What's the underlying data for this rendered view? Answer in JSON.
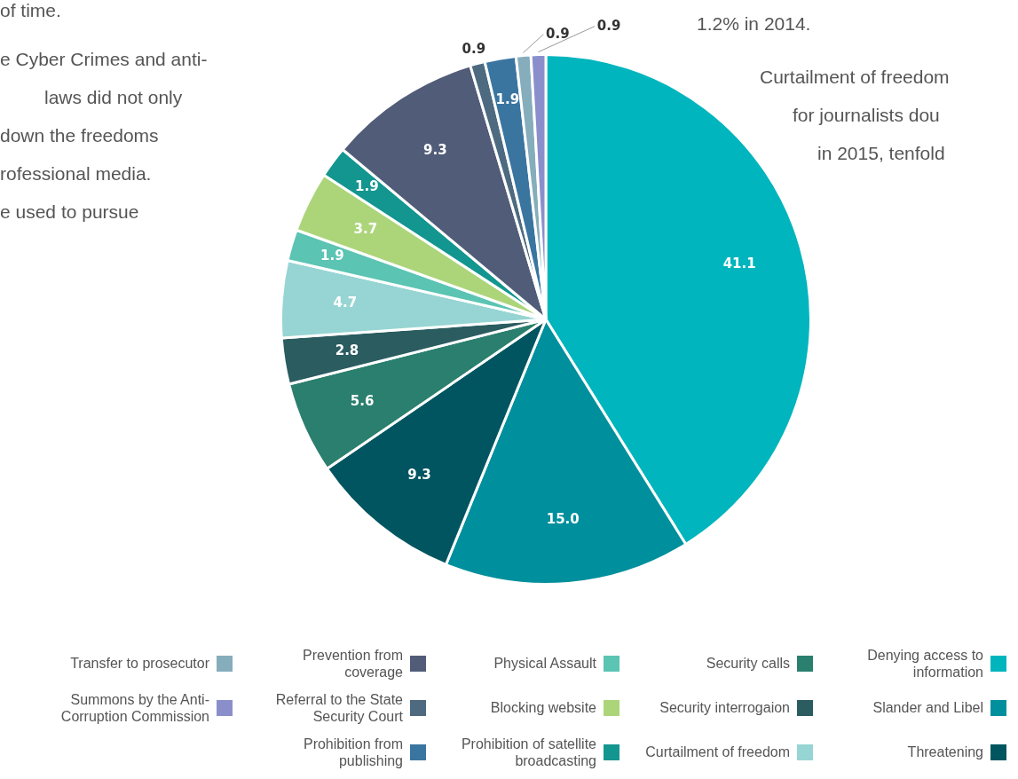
{
  "chart_data": {
    "type": "pie",
    "categories": [
      "Denying access to information",
      "Slander and Libel",
      "Threatening",
      "Security calls",
      "Security interrogaion",
      "Curtailment of freedom",
      "Physical Assault",
      "Blocking website",
      "Prohibition of  satellite broadcasting",
      "Prevention from coverage",
      "Referral to the State Security Court",
      "Prohibition from publishing",
      "Transfer to prosecutor",
      "Summons by the Anti-Corruption Commission"
    ],
    "values": [
      41.1,
      15.0,
      9.3,
      5.6,
      2.8,
      4.7,
      1.9,
      3.7,
      1.9,
      9.3,
      0.9,
      1.9,
      0.9,
      0.9
    ],
    "value_labels": [
      "41.1",
      "15.0",
      "9.3",
      "5.6",
      "2.8",
      "4.7",
      "1.9",
      "3.7",
      "1.9",
      "9.3",
      "0.9",
      "1.9",
      "0.9",
      "0.9"
    ],
    "colors": [
      "#00b5bd",
      "#008f9c",
      "#005560",
      "#2a7f6e",
      "#2a5c60",
      "#96d5d3",
      "#5bc4b3",
      "#acd57a",
      "#13968f",
      "#515c78",
      "#4d6a80",
      "#3a75a0",
      "#85adbb",
      "#8a8fcc"
    ],
    "legend": "bottom",
    "annotations": [
      "of time.",
      "e Cyber Crimes and anti-",
      "laws did not only",
      "down the freedoms",
      "rofessional media.",
      "e used to pursue",
      "1.2% in 2014.",
      "Curtailment of freedom",
      "for journalists dou",
      "in 2015, tenfold"
    ]
  }
}
